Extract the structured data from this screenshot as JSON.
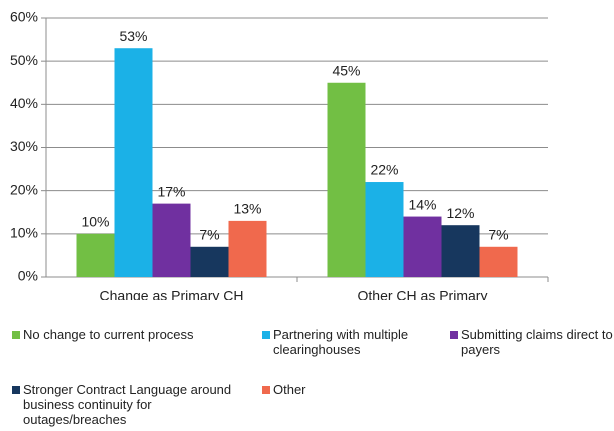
{
  "chart_data": {
    "type": "bar",
    "categories": [
      "Change as Primary CH",
      "Other CH as Primary"
    ],
    "series": [
      {
        "name": "No change to current process",
        "color": "#72bf44",
        "values": [
          10,
          45
        ],
        "value_labels": [
          "10%",
          "45%"
        ]
      },
      {
        "name": "Partnering with multiple clearinghouses",
        "color": "#1bb1e7",
        "values": [
          53,
          22
        ],
        "value_labels": [
          "53%",
          "22%"
        ]
      },
      {
        "name": "Submitting claims direct to payers",
        "color": "#7030a0",
        "values": [
          17,
          14
        ],
        "value_labels": [
          "17%",
          "14%"
        ]
      },
      {
        "name": "Stronger Contract Language around business continuity for outages/breaches",
        "color": "#17375e",
        "values": [
          7,
          12
        ],
        "value_labels": [
          "7%",
          "12%"
        ]
      },
      {
        "name": "Other",
        "color": "#f0694d",
        "values": [
          13,
          7
        ],
        "value_labels": [
          "13%",
          "7%"
        ]
      }
    ],
    "ylim": [
      0,
      60
    ],
    "yticks": [
      {
        "value": 0,
        "label": "0%"
      },
      {
        "value": 10,
        "label": "10%"
      },
      {
        "value": 20,
        "label": "20%"
      },
      {
        "value": 30,
        "label": "30%"
      },
      {
        "value": 40,
        "label": "40%"
      },
      {
        "value": 50,
        "label": "50%"
      },
      {
        "value": 60,
        "label": "60%"
      }
    ],
    "grid": true
  }
}
